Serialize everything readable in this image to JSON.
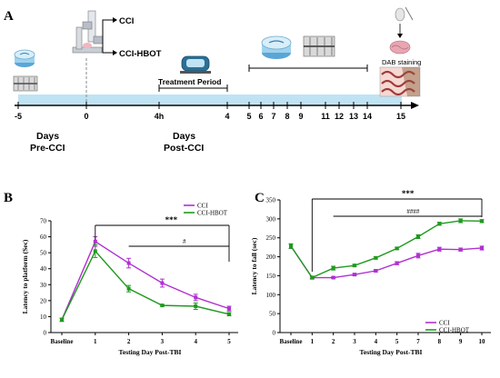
{
  "panel_a": {
    "label": "A",
    "arms": [
      "CCI",
      "CCI-HBOT"
    ],
    "treatment_label": "Treatment Period",
    "staining_label": "DAB staining",
    "ticks": [
      "-5",
      "0",
      "4h",
      "4",
      "5",
      "6",
      "7",
      "8",
      "9",
      "11",
      "12",
      "13",
      "14",
      "15"
    ],
    "days_pre": [
      "Days",
      "Pre-CCI"
    ],
    "days_post": [
      "Days",
      "Post-CCI"
    ]
  },
  "colors": {
    "cci": "#b030d0",
    "hbot": "#1f9a1f",
    "timeline": "#bfe3f3"
  },
  "icons": [
    "water-maze-pool-icon",
    "rotarod-icon",
    "stereotaxic-impactor-icon",
    "hyperbaric-chamber-icon",
    "mouse-sacrifice-icon",
    "brain-icon",
    "dab-histology-icon"
  ],
  "chart_data": [
    {
      "type": "line",
      "panel": "B",
      "categories": [
        "Baseline",
        "1",
        "2",
        "3",
        "4",
        "5"
      ],
      "xlabel": "Testing Day Post-TBI",
      "ylabel": "Latency to platform (Sec)",
      "ylim": [
        0,
        70
      ],
      "yticks": [
        "0",
        "10",
        "20",
        "30",
        "40",
        "50",
        "60",
        "70"
      ],
      "legend": "top-right",
      "grid": false,
      "series": [
        {
          "name": "CCI",
          "values": [
            8,
            57,
            43.5,
            31,
            22,
            15
          ],
          "errors": [
            1,
            3,
            3,
            2.5,
            2,
            1.5
          ]
        },
        {
          "name": "CCI-HBOT",
          "values": [
            8,
            51,
            27.5,
            17,
            16.5,
            11.5
          ],
          "errors": [
            1,
            4,
            2,
            0.5,
            2,
            1
          ]
        }
      ],
      "annotations": [
        "***",
        "#"
      ]
    },
    {
      "type": "line",
      "panel": "C",
      "categories": [
        "Baseline",
        "1",
        "2",
        "3",
        "4",
        "5",
        "7",
        "8",
        "9",
        "10"
      ],
      "xlabel": "Testing Day Post-TBI",
      "ylabel": "Latency to fall (sec)",
      "ylim": [
        0,
        350
      ],
      "yticks": [
        "0",
        "50",
        "100",
        "150",
        "200",
        "250",
        "300",
        "350"
      ],
      "legend": "bottom-right",
      "grid": false,
      "series": [
        {
          "name": "CCI",
          "values": [
            228,
            145,
            145,
            153,
            163,
            183,
            203,
            220,
            219,
            223
          ],
          "errors": [
            6,
            3,
            2,
            3,
            3,
            4,
            6,
            5,
            4,
            5
          ]
        },
        {
          "name": "CCI-HBOT",
          "values": [
            228,
            145,
            170,
            177,
            197,
            222,
            253,
            287,
            295,
            294
          ],
          "errors": [
            6,
            4,
            5,
            3,
            3,
            3,
            5,
            4,
            5,
            4
          ]
        }
      ],
      "annotations": [
        "***",
        "####"
      ]
    }
  ]
}
